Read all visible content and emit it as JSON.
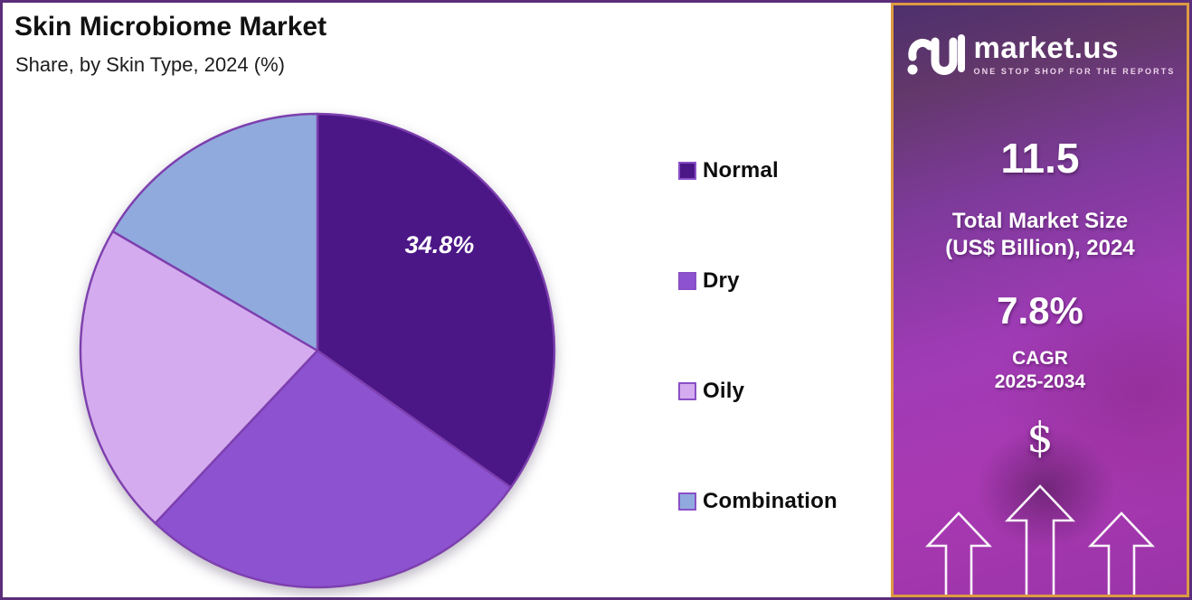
{
  "title": "Skin Microbiome Market",
  "subtitle": "Share, by Skin Type, 2024 (%)",
  "chart_data": {
    "type": "pie",
    "title": "Skin Microbiome Market Share, by Skin Type, 2024 (%)",
    "unit": "percent",
    "start_angle_deg": 0,
    "direction": "clockwise",
    "legend_position": "right",
    "slice_border_color": "#7d3fae",
    "slices": [
      {
        "label": "Normal",
        "value": 34.8,
        "color": "#4b1786",
        "data_label": "34.8%",
        "show_label": true
      },
      {
        "label": "Dry",
        "value": 27.2,
        "color": "#8c52d0",
        "show_label": false
      },
      {
        "label": "Oily",
        "value": 21.4,
        "color": "#d4abee",
        "show_label": false
      },
      {
        "label": "Combination",
        "value": 16.6,
        "color": "#90aadd",
        "show_label": false
      }
    ],
    "note": "Only the Normal slice carries a printed data label (34.8%); other slice values are estimated from arc angles."
  },
  "sidebar": {
    "logo_text": "market.us",
    "logo_tagline": "ONE STOP SHOP FOR THE REPORTS",
    "market_size_value": "11.5",
    "market_size_label_line1": "Total Market Size",
    "market_size_label_line2": "(US$ Billion), 2024",
    "cagr_value": "7.8%",
    "cagr_label_line1": "CAGR",
    "cagr_label_line2": "2025-2034",
    "currency_symbol": "$"
  },
  "colors": {
    "frame_border": "#5c2d7a",
    "sidebar_border": "#dd9a42",
    "sidebar_gradient_top": "#4e2f6d",
    "sidebar_gradient_bottom": "#9b34a8",
    "legend_swatch_border": "#8a4fc8",
    "slice_label_text": "#ffffff"
  }
}
